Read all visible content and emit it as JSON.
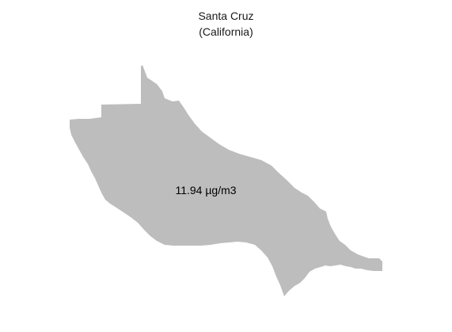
{
  "map": {
    "title": "Santa Cruz",
    "subtitle": "(California)",
    "region_value_label": "11.94 µg/m3",
    "region_fill_color": "#bdbdbd",
    "background_color": "#ffffff"
  }
}
